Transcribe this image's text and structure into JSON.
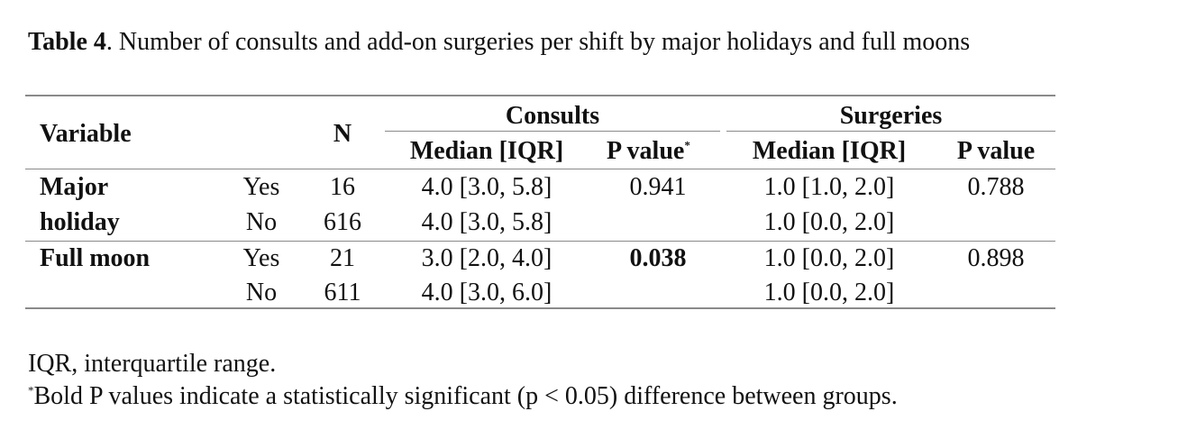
{
  "caption": {
    "label": "Table 4",
    "text": ". Number of consults and add-on surgeries per shift by major holidays and full moons"
  },
  "header": {
    "variable": "Variable",
    "n": "N",
    "consults": "Consults",
    "surgeries": "Surgeries",
    "median_iqr": "Median [IQR]",
    "p_value": "P value",
    "p_marker": "*"
  },
  "rows": [
    {
      "variable": "Major",
      "level": "Yes",
      "n": "16",
      "consults_median": "4.0 [3.0, 5.8]",
      "consults_p": "0.941",
      "surgeries_median": "1.0 [1.0, 2.0]",
      "surgeries_p": "0.788"
    },
    {
      "variable": "holiday",
      "level": "No",
      "n": "616",
      "consults_median": "4.0 [3.0, 5.8]",
      "consults_p": "",
      "surgeries_median": "1.0 [0.0, 2.0]",
      "surgeries_p": ""
    },
    {
      "variable": "Full moon",
      "level": "Yes",
      "n": "21",
      "consults_median": "3.0 [2.0, 4.0]",
      "consults_p": "0.038",
      "surgeries_median": "1.0 [0.0, 2.0]",
      "surgeries_p": "0.898"
    },
    {
      "variable": "",
      "level": "No",
      "n": "611",
      "consults_median": "4.0 [3.0, 6.0]",
      "consults_p": "",
      "surgeries_median": "1.0 [0.0, 2.0]",
      "surgeries_p": ""
    }
  ],
  "footnotes": {
    "iqr": "IQR, interquartile range.",
    "marker": "*",
    "bold_note": "Bold P values indicate a statistically significant (p < 0.05) difference between groups."
  }
}
